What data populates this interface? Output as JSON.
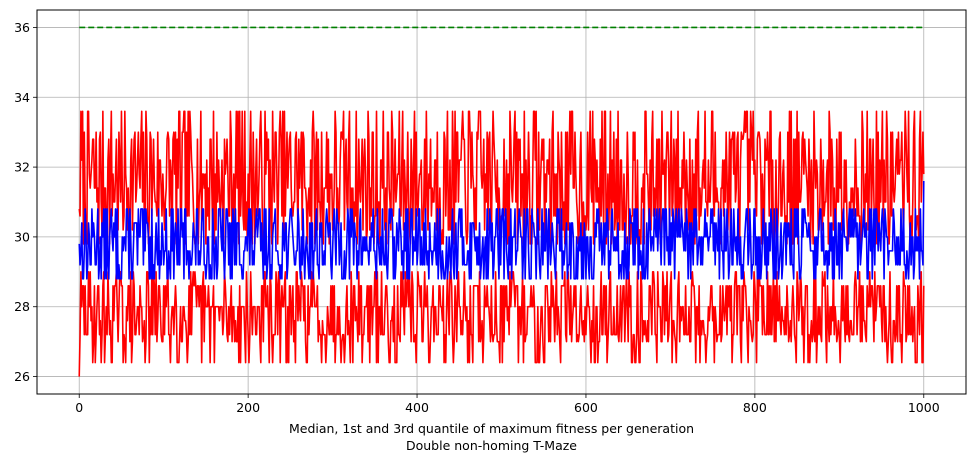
{
  "chart_data": {
    "type": "line",
    "title": "",
    "xlabel_lines": [
      "Median, 1st and 3rd quantile of maximum fitness per generation",
      "Double non-homing T-Maze"
    ],
    "ylabel": "",
    "xlim": [
      -50,
      1050
    ],
    "ylim": [
      25.5,
      36.5
    ],
    "xticks": [
      0,
      200,
      400,
      600,
      800,
      1000
    ],
    "yticks": [
      26,
      28,
      30,
      32,
      34,
      36
    ],
    "grid": true,
    "legend": "none",
    "generations": 1000,
    "reference_line": {
      "value": 36,
      "color": "#008000",
      "style": "dashed"
    },
    "series": [
      {
        "role": "upper-quantile",
        "color": "#ff0000",
        "start": 30.8,
        "levels": [
          29.8,
          30.2,
          30.6,
          31.0,
          31.4,
          31.8,
          32.2,
          32.8,
          33.0,
          33.6
        ]
      },
      {
        "role": "median",
        "color": "#0000ff",
        "start": 29.8,
        "end": 31.6,
        "levels": [
          28.8,
          29.2,
          29.6,
          30.0,
          30.4,
          30.8
        ]
      },
      {
        "role": "lower-quantile",
        "color": "#ff0000",
        "start": 26.0,
        "levels": [
          26.4,
          27.0,
          27.2,
          27.2,
          27.6,
          28.0,
          28.0,
          28.6,
          28.6,
          29.0
        ]
      }
    ]
  }
}
